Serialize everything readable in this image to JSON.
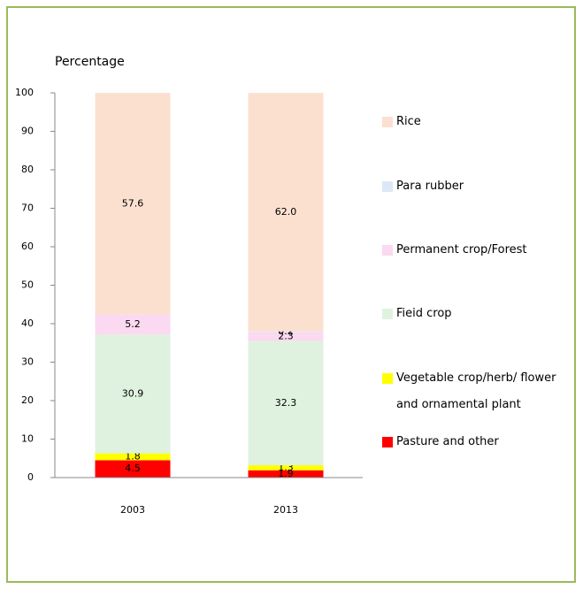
{
  "chart_data": {
    "type": "stacked_bar",
    "y_axis_label": "Percentage",
    "categories": [
      "2003",
      "2013"
    ],
    "series": [
      {
        "name": "Pasture and other",
        "color": "#ff0000",
        "values": [
          4.5,
          1.9
        ],
        "value_labels": [
          "4.5",
          "1.9"
        ]
      },
      {
        "name": "Vegetable crop/herb/ flower and ornamental plant",
        "color": "#ffff00",
        "values": [
          1.8,
          1.3
        ],
        "value_labels": [
          "1.8",
          "1.3"
        ]
      },
      {
        "name": "Fieid crop",
        "color": "#dff2e0",
        "values": [
          30.9,
          32.3
        ],
        "value_labels": [
          "30.9",
          "32.3"
        ]
      },
      {
        "name": "Permanent crop/Forest",
        "color": "#fbd9f0",
        "values": [
          5.2,
          2.3
        ],
        "value_labels": [
          "5.2",
          "2.3"
        ]
      },
      {
        "name": "Para rubber",
        "color": "#dce8f8",
        "values": [
          0,
          0.2
        ],
        "value_labels": [
          null,
          "0.2"
        ]
      },
      {
        "name": "Rice",
        "color": "#fbe0d0",
        "values": [
          57.6,
          62.0
        ],
        "value_labels": [
          "57.6",
          "62.0"
        ]
      }
    ],
    "ylim": [
      0,
      100
    ],
    "yticks": [
      0,
      10,
      20,
      30,
      40,
      50,
      60,
      70,
      80,
      90,
      100
    ],
    "legend": "right"
  }
}
